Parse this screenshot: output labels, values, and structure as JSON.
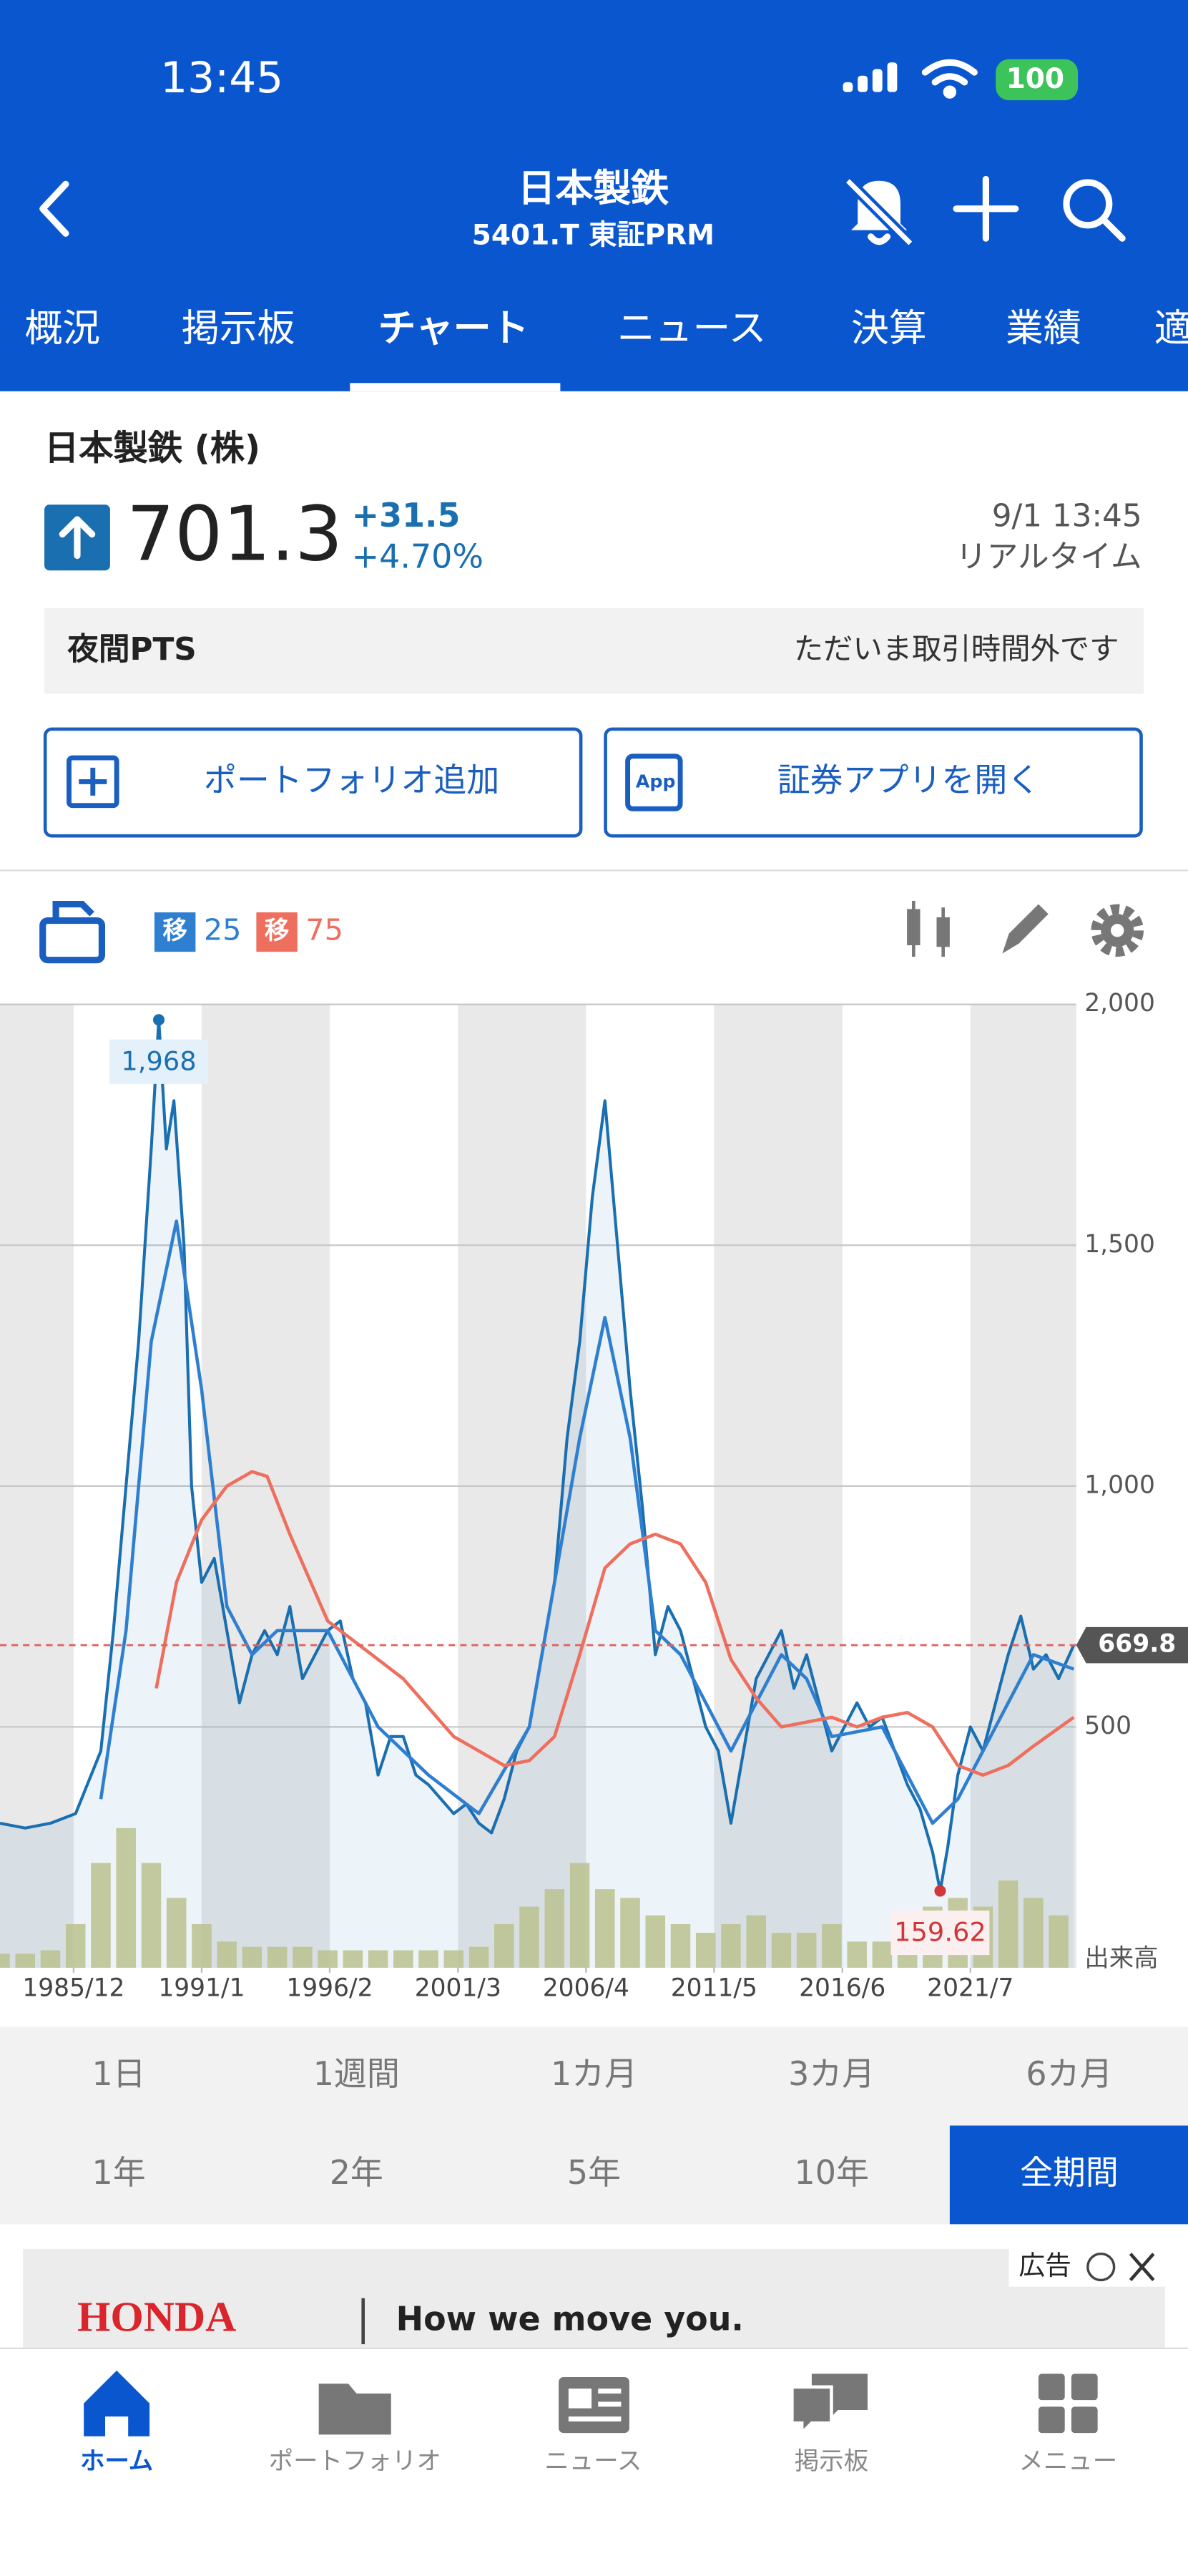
{
  "status_bar": {
    "time": "13:45",
    "battery": 100
  },
  "header": {
    "title": "日本製鉄",
    "subtitle": "5401.T 東証PRM"
  },
  "tabs": [
    "概況",
    "掲示板",
    "チャート",
    "ニュース",
    "決算",
    "業績",
    "適"
  ],
  "stock": {
    "name": "日本製鉄 (株)",
    "price": 701.3,
    "change": "+31.5",
    "change_pct": "+4.70%",
    "date": "9/1 13:45",
    "status": "リアルタイム"
  },
  "pts": {
    "label": "夜間PTS",
    "message": "ただいま取引時間外です"
  },
  "buttons": {
    "portfolio": "ポートフォリオ追加",
    "app_icon": "App",
    "app": "証券アプリを開く"
  },
  "chart_data": {
    "type": "line",
    "ma_badge": "移",
    "xlim": [
      1983,
      2025.7
    ],
    "ylim": [
      0,
      2000
    ],
    "yticks": [
      {
        "value": 2000,
        "label": "2,000"
      },
      {
        "value": 1500,
        "label": "1,500"
      },
      {
        "value": 1000,
        "label": "1,000"
      },
      500
    ],
    "xticks": [
      {
        "value": 1985.92,
        "label": "1985/12"
      },
      {
        "value": 1991.0,
        "label": "1991/1"
      },
      {
        "value": 1996.08,
        "label": "1996/2"
      },
      {
        "value": 2001.17,
        "label": "2001/3"
      },
      {
        "value": 2006.25,
        "label": "2006/4"
      },
      {
        "value": 2011.33,
        "label": "2011/5"
      },
      {
        "value": 2016.42,
        "label": "2016/6"
      },
      {
        "value": 2021.5,
        "label": "2021/7"
      }
    ],
    "grid": true,
    "price": {
      "color": "#1a6fb0",
      "x": [
        1983,
        1984,
        1985,
        1986,
        1987,
        1987.5,
        1988,
        1988.5,
        1989,
        1989.3,
        1989.6,
        1989.9,
        1990.3,
        1990.6,
        1991,
        1991.5,
        1992,
        1992.5,
        1993,
        1993.5,
        1994,
        1994.5,
        1995,
        1995.5,
        1996,
        1996.5,
        1997,
        1997.5,
        1998,
        1998.5,
        1999,
        1999.5,
        2000,
        2000.5,
        2001,
        2001.5,
        2002,
        2002.5,
        2003,
        2003.5,
        2004,
        2004.5,
        2005,
        2005.5,
        2006,
        2006.5,
        2007,
        2007.5,
        2008,
        2008.5,
        2009,
        2009.5,
        2010,
        2010.5,
        2011,
        2011.5,
        2012,
        2012.5,
        2013,
        2013.5,
        2014,
        2014.5,
        2015,
        2015.5,
        2016,
        2016.5,
        2017,
        2017.5,
        2018,
        2018.5,
        2019,
        2019.5,
        2020,
        2020.3,
        2020.6,
        2021,
        2021.5,
        2022,
        2022.5,
        2023,
        2023.5,
        2024,
        2024.5,
        2025,
        2025.6
      ],
      "values": [
        300,
        290,
        300,
        320,
        450,
        700,
        1000,
        1300,
        1700,
        1968,
        1700,
        1800,
        1500,
        1000,
        800,
        850,
        700,
        550,
        650,
        700,
        650,
        750,
        600,
        650,
        700,
        720,
        600,
        550,
        400,
        480,
        480,
        400,
        380,
        350,
        320,
        340,
        300,
        280,
        350,
        450,
        500,
        650,
        800,
        1100,
        1300,
        1600,
        1800,
        1500,
        1200,
        950,
        650,
        750,
        700,
        600,
        500,
        450,
        300,
        450,
        600,
        650,
        700,
        580,
        650,
        550,
        450,
        500,
        550,
        500,
        520,
        450,
        380,
        330,
        240,
        159.62,
        250,
        400,
        500,
        450,
        550,
        650,
        730,
        620,
        650,
        600,
        669.8
      ]
    },
    "series": [
      {
        "name": "25",
        "color": "#2f7fd1",
        "x": [
          1987,
          1988,
          1989,
          1990,
          1991,
          1992,
          1993,
          1994,
          1996,
          1998,
          2000,
          2002,
          2004,
          2006,
          2007,
          2008,
          2009,
          2010,
          2011,
          2012,
          2013,
          2014,
          2015,
          2016,
          2018,
          2019,
          2020,
          2021,
          2022,
          2023,
          2024,
          2025.6
        ],
        "values": [
          350,
          700,
          1300,
          1550,
          1200,
          750,
          650,
          700,
          700,
          500,
          400,
          320,
          500,
          1100,
          1350,
          1100,
          700,
          650,
          550,
          450,
          550,
          650,
          600,
          480,
          500,
          400,
          300,
          350,
          450,
          550,
          650,
          620
        ]
      },
      {
        "name": "75",
        "color": "#ee6f5e",
        "x": [
          1989.2,
          1990,
          1991,
          1992,
          1993,
          1993.6,
          1994.5,
          1996,
          1997,
          1999,
          2001,
          2003,
          2004,
          2005,
          2006,
          2007,
          2008,
          2009,
          2010,
          2011,
          2012,
          2013,
          2014,
          2016,
          2017,
          2018,
          2019,
          2020,
          2021,
          2022,
          2023,
          2024,
          2025.6
        ],
        "values": [
          580,
          800,
          930,
          1000,
          1030,
          1020,
          900,
          720,
          680,
          600,
          480,
          420,
          430,
          480,
          650,
          830,
          880,
          900,
          880,
          800,
          640,
          560,
          500,
          520,
          500,
          520,
          530,
          500,
          420,
          400,
          420,
          460,
          520
        ]
      }
    ],
    "volume": {
      "name": "出来高",
      "color": "#c9c98c",
      "x": [
        1983,
        1984,
        1985,
        1986,
        1987,
        1988,
        1989,
        1990,
        1991,
        1992,
        1993,
        1994,
        1995,
        1996,
        1997,
        1998,
        1999,
        2000,
        2001,
        2002,
        2003,
        2004,
        2005,
        2006,
        2007,
        2008,
        2009,
        2010,
        2011,
        2012,
        2013,
        2014,
        2015,
        2016,
        2017,
        2018,
        2019,
        2020,
        2021,
        2022,
        2023,
        2024,
        2025
      ],
      "values": [
        8,
        8,
        10,
        25,
        60,
        80,
        60,
        40,
        25,
        15,
        12,
        12,
        12,
        10,
        10,
        10,
        10,
        10,
        10,
        12,
        25,
        35,
        45,
        60,
        45,
        40,
        30,
        25,
        20,
        25,
        30,
        20,
        20,
        25,
        15,
        15,
        20,
        35,
        40,
        35,
        50,
        40,
        30
      ]
    },
    "annotations": [
      {
        "x": 1989.3,
        "value": 1968,
        "label": "1,968",
        "color": "#1a6fb0"
      },
      {
        "x": 2020.3,
        "value": 159.62,
        "color": "#d0363a"
      }
    ],
    "current": {
      "value": 669.8,
      "color": "#e0605a"
    }
  },
  "periods": [
    "1日",
    "1週間",
    "1カ月",
    "3カ月",
    "6カ月",
    "1年",
    "2年",
    "5年",
    "10年",
    "全期間"
  ],
  "ad": {
    "badge": "広告",
    "brand": "HONDA",
    "slogan": "How we move you."
  },
  "nav": [
    "ホーム",
    "ポートフォリオ",
    "ニュース",
    "掲示板",
    "メニュー"
  ]
}
